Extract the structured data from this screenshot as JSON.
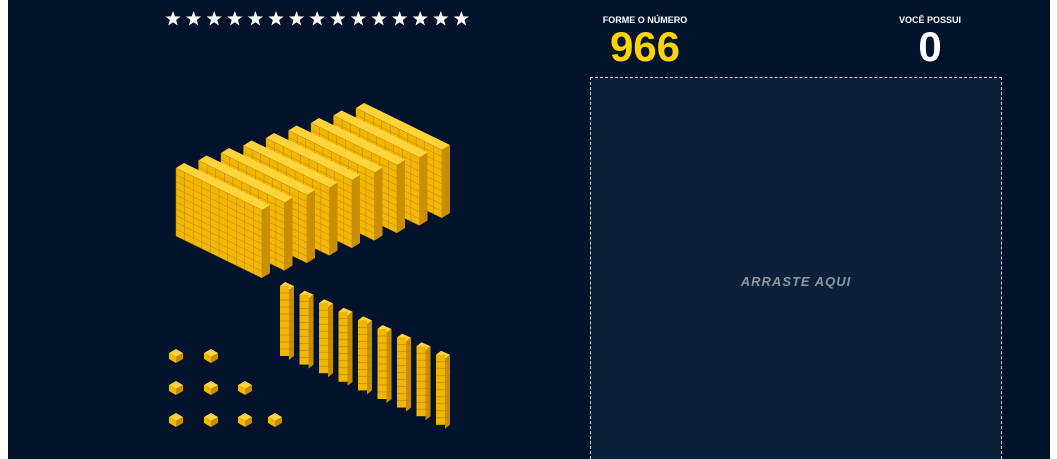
{
  "header": {
    "target_label": "FORME O NÚMERO",
    "target_value": "966",
    "current_label": "VOCÊ POSSUI",
    "current_value": "0"
  },
  "drop_zone": {
    "label": "ARRASTE AQUI"
  }
}
